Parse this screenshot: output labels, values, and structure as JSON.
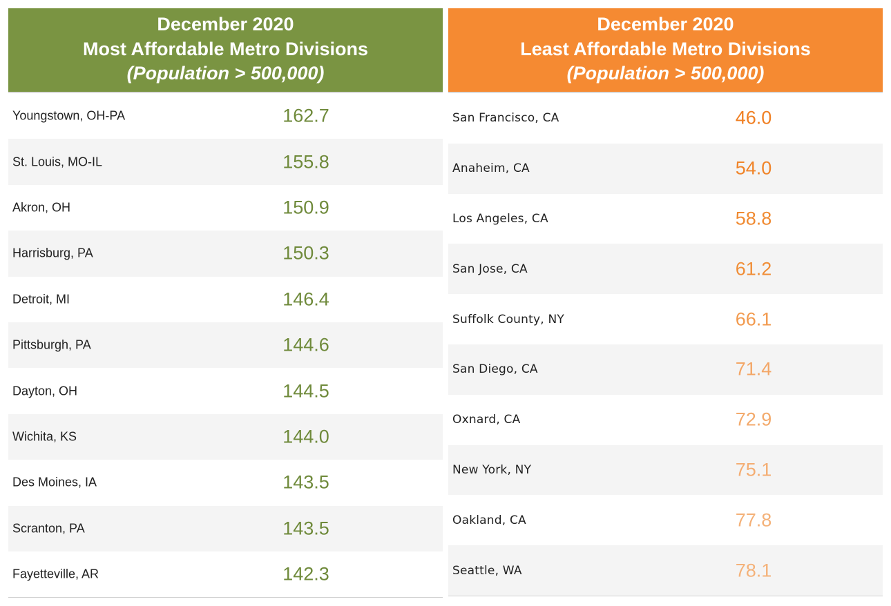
{
  "chart_data": [
    {
      "type": "table",
      "title": "December 2020",
      "subtitle": "Most Affordable Metro Divisions",
      "note": "(Population > 500,000)",
      "accent": "#7a9442",
      "value_color": "#6f8a3b",
      "rows": [
        {
          "name": "Youngstown, OH-PA",
          "value": "162.7"
        },
        {
          "name": "St. Louis, MO-IL",
          "value": "155.8"
        },
        {
          "name": "Akron, OH",
          "value": "150.9"
        },
        {
          "name": "Harrisburg, PA",
          "value": "150.3"
        },
        {
          "name": "Detroit, MI",
          "value": "146.4"
        },
        {
          "name": "Pittsburgh, PA",
          "value": "144.6"
        },
        {
          "name": "Dayton, OH",
          "value": "144.5"
        },
        {
          "name": "Wichita, KS",
          "value": "144.0"
        },
        {
          "name": "Des Moines, IA",
          "value": "143.5"
        },
        {
          "name": "Scranton, PA",
          "value": "143.5"
        },
        {
          "name": "Fayetteville, AR",
          "value": "142.3"
        }
      ]
    },
    {
      "type": "table",
      "title": "December 2020",
      "subtitle": "Least Affordable Metro Divisions",
      "note": "(Population > 500,000)",
      "accent": "#f58a32",
      "rows": [
        {
          "name": "San Francisco, CA",
          "value": "46.0",
          "color": "#f07f22"
        },
        {
          "name": "Anaheim, CA",
          "value": "54.0",
          "color": "#f08429"
        },
        {
          "name": "Los Angeles, CA",
          "value": "58.8",
          "color": "#f08a31"
        },
        {
          "name": "San Jose, CA",
          "value": "61.2",
          "color": "#f08e37"
        },
        {
          "name": "Suffolk County, NY",
          "value": "66.1",
          "color": "#f29a4e"
        },
        {
          "name": "San Diego, CA",
          "value": "71.4",
          "color": "#f3a666"
        },
        {
          "name": "Oxnard, CA",
          "value": "72.9",
          "color": "#f3aa6c"
        },
        {
          "name": "New York, NY",
          "value": "75.1",
          "color": "#f4ad72"
        },
        {
          "name": "Oakland, CA",
          "value": "77.8",
          "color": "#f4b178"
        },
        {
          "name": "Seattle, WA",
          "value": "78.1",
          "color": "#f4b27a"
        }
      ]
    }
  ]
}
